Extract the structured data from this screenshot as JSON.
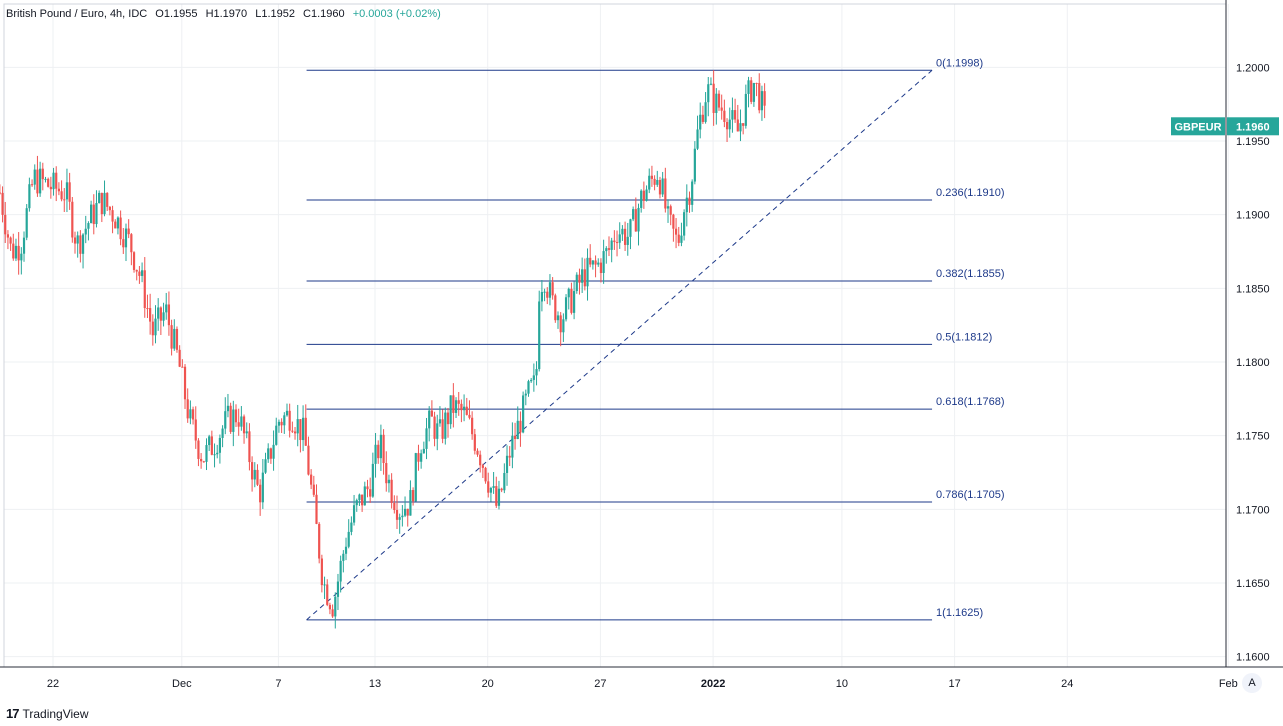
{
  "header": {
    "symbol": "British Pound / Euro, 4h, IDC",
    "open": "O1.1955",
    "high": "H1.1970",
    "low": "L1.1952",
    "close": "C1.1960",
    "change": "+0.0003 (+0.02%)"
  },
  "branding": {
    "name": "TradingView",
    "logo_text": "17"
  },
  "autoscale_label": "A",
  "colors": {
    "up": "#26a69a",
    "down": "#ef5350",
    "fib": "#1e3a8a",
    "grid": "#eef0f3"
  },
  "chart_data": {
    "type": "candlestick",
    "symbol": "GBPEUR",
    "last_price_label": "1.1960",
    "ylim": [
      1.1593,
      1.2043
    ],
    "y_ticks": [
      "1.2000",
      "1.1950",
      "1.1900",
      "1.1850",
      "1.1800",
      "1.1750",
      "1.1700",
      "1.1650",
      "1.1600"
    ],
    "x_ticks": [
      {
        "label": "22",
        "day": 0
      },
      {
        "label": "Dec",
        "day": 8
      },
      {
        "label": "7",
        "day": 14
      },
      {
        "label": "13",
        "day": 20
      },
      {
        "label": "20",
        "day": 27
      },
      {
        "label": "27",
        "day": 34
      },
      {
        "label": "2022",
        "day": 41
      },
      {
        "label": "10",
        "day": 49
      },
      {
        "label": "17",
        "day": 56
      },
      {
        "label": "24",
        "day": 63
      },
      {
        "label": "Feb",
        "day": 73
      }
    ],
    "fib_levels": [
      {
        "label": "0(1.1998)",
        "value": 1.1998
      },
      {
        "label": "0.236(1.1910)",
        "value": 1.191
      },
      {
        "label": "0.382(1.1855)",
        "value": 1.1855
      },
      {
        "label": "0.5(1.1812)",
        "value": 1.1812
      },
      {
        "label": "0.618(1.1768)",
        "value": 1.1768
      },
      {
        "label": "0.786(1.1705)",
        "value": 1.1705
      },
      {
        "label": "1(1.1625)",
        "value": 1.1625
      }
    ],
    "fib_range_days": [
      15.75,
      54.6
    ],
    "trend_line": {
      "from": {
        "day": 15.75,
        "value": 1.1625
      },
      "to": {
        "day": 54.6,
        "value": 1.1998
      }
    },
    "close_path": [
      [
        -3.3,
        1.1915
      ],
      [
        -2.6,
        1.1875
      ],
      [
        -2.0,
        1.188
      ],
      [
        -1.2,
        1.1925
      ],
      [
        -0.3,
        1.192
      ],
      [
        0.8,
        1.1915
      ],
      [
        1.5,
        1.188
      ],
      [
        2.2,
        1.1895
      ],
      [
        3.0,
        1.191
      ],
      [
        3.8,
        1.19
      ],
      [
        4.8,
        1.188
      ],
      [
        5.5,
        1.1855
      ],
      [
        6.2,
        1.182
      ],
      [
        7.0,
        1.1835
      ],
      [
        7.8,
        1.18
      ],
      [
        8.5,
        1.176
      ],
      [
        9.3,
        1.1735
      ],
      [
        10.0,
        1.1745
      ],
      [
        10.8,
        1.176
      ],
      [
        11.5,
        1.1765
      ],
      [
        12.1,
        1.174
      ],
      [
        12.8,
        1.171
      ],
      [
        13.3,
        1.173
      ],
      [
        14.0,
        1.176
      ],
      [
        14.8,
        1.1765
      ],
      [
        15.6,
        1.175
      ],
      [
        16.2,
        1.17
      ],
      [
        16.8,
        1.165
      ],
      [
        17.4,
        1.1635
      ],
      [
        18.2,
        1.168
      ],
      [
        18.8,
        1.17
      ],
      [
        19.6,
        1.1715
      ],
      [
        20.3,
        1.1745
      ],
      [
        20.8,
        1.172
      ],
      [
        21.5,
        1.17
      ],
      [
        22.2,
        1.1705
      ],
      [
        22.8,
        1.1745
      ],
      [
        23.5,
        1.176
      ],
      [
        24.0,
        1.175
      ],
      [
        24.8,
        1.177
      ],
      [
        25.5,
        1.1765
      ],
      [
        26.3,
        1.1745
      ],
      [
        26.9,
        1.1725
      ],
      [
        27.6,
        1.17
      ],
      [
        28.4,
        1.174
      ],
      [
        29.0,
        1.176
      ],
      [
        29.6,
        1.178
      ],
      [
        30.0,
        1.1785
      ],
      [
        30.2,
        1.185
      ],
      [
        30.5,
        1.186
      ],
      [
        31.0,
        1.184
      ],
      [
        31.6,
        1.183
      ],
      [
        32.3,
        1.1845
      ],
      [
        33.0,
        1.186
      ],
      [
        33.8,
        1.1865
      ],
      [
        34.5,
        1.1875
      ],
      [
        35.0,
        1.189
      ],
      [
        35.8,
        1.1885
      ],
      [
        36.5,
        1.191
      ],
      [
        37.0,
        1.192
      ],
      [
        37.6,
        1.193
      ],
      [
        38.2,
        1.1895
      ],
      [
        38.8,
        1.188
      ],
      [
        39.2,
        1.1905
      ],
      [
        39.6,
        1.192
      ],
      [
        40.1,
        1.196
      ],
      [
        40.6,
        1.1985
      ],
      [
        41.2,
        1.1975
      ],
      [
        41.8,
        1.197
      ],
      [
        42.5,
        1.1955
      ],
      [
        43.0,
        1.1975
      ],
      [
        43.5,
        1.199
      ],
      [
        43.9,
        1.198
      ],
      [
        44.3,
        1.196
      ]
    ]
  }
}
